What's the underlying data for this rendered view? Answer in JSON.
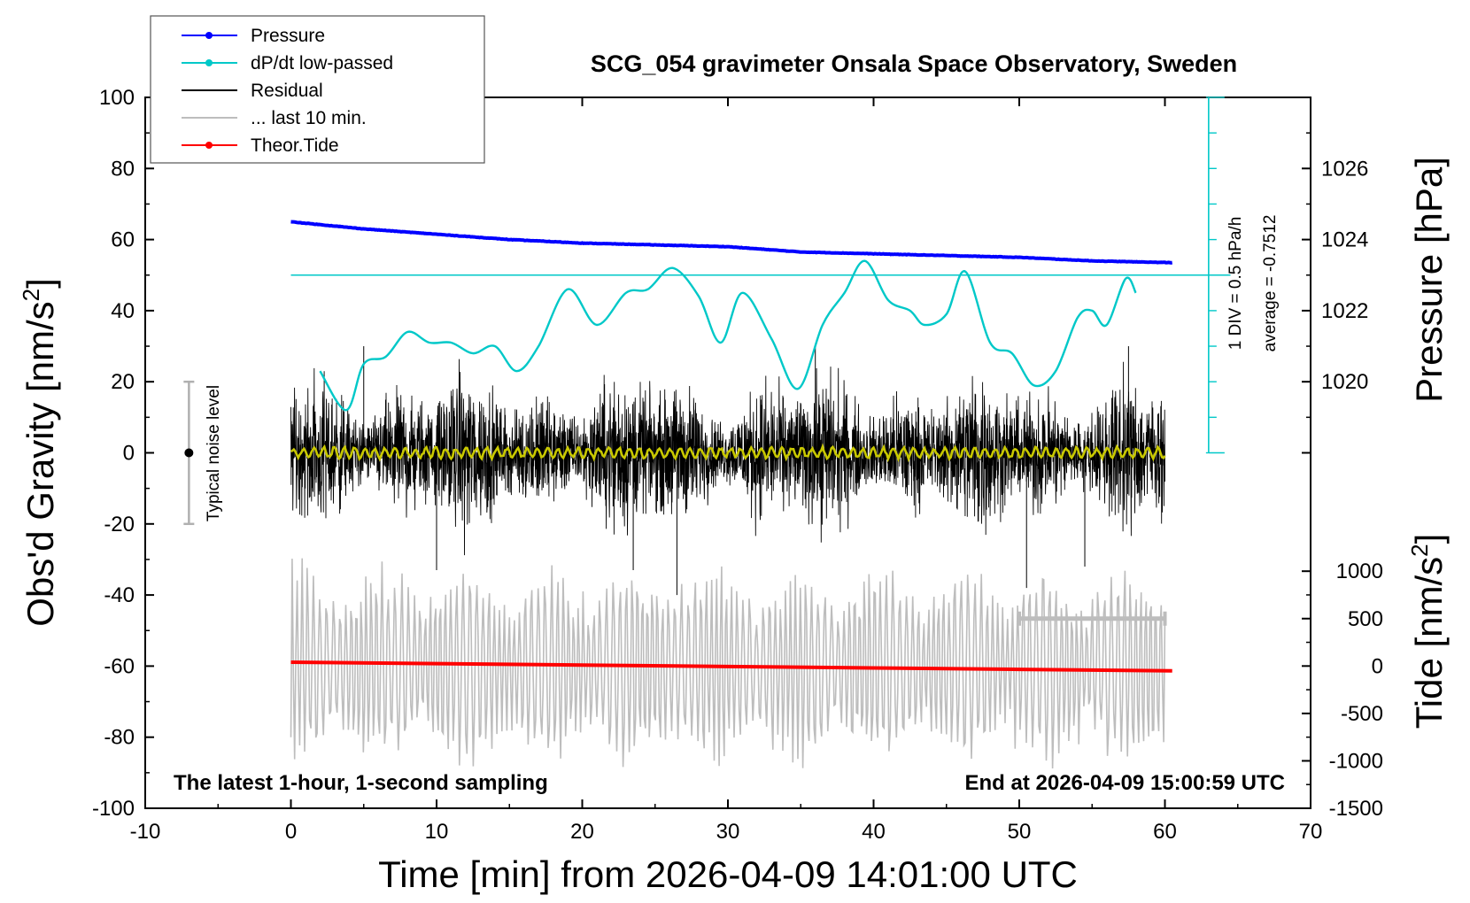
{
  "chart_data": {
    "type": "line",
    "title": "SCG_054 gravimeter Onsala Space Observatory, Sweden",
    "xlabel": "Time [min] from 2026-04-09 14:01:00 UTC",
    "ylabel_left": "Obs'd Gravity [nm/s",
    "ylabel_left_sup": "2",
    "ylabel_left_end": "]",
    "ylabel_right_top": "Pressure [hPa]",
    "ylabel_right_bottom": "Tide [nm/s",
    "ylabel_right_bottom_sup": "2",
    "ylabel_right_bottom_end": "]",
    "xlim": [
      -10,
      70
    ],
    "ylim_left": [
      -100,
      100
    ],
    "pressure_axis_range": [
      1018,
      1028
    ],
    "tide_axis_range": [
      -1500,
      1000
    ],
    "x_ticks": [
      -10,
      0,
      10,
      20,
      30,
      40,
      50,
      60,
      70
    ],
    "x_tick_labels": [
      "-10",
      "0",
      "10",
      "20",
      "30",
      "40",
      "50",
      "60",
      "70"
    ],
    "y_left_ticks": [
      -100,
      -80,
      -60,
      -40,
      -20,
      0,
      20,
      40,
      60,
      80,
      100
    ],
    "y_left_tick_labels": [
      "-100",
      "-80",
      "-60",
      "-40",
      "-20",
      "0",
      "20",
      "40",
      "60",
      "80",
      "100"
    ],
    "pressure_ticks": [
      1020,
      1022,
      1024,
      1026
    ],
    "pressure_tick_labels": [
      "1020",
      "1022",
      "1024",
      "1026"
    ],
    "tide_ticks": [
      -1500,
      -1000,
      -500,
      0,
      500,
      1000
    ],
    "tide_tick_labels": [
      "-1500",
      "-1000",
      "-500",
      "0",
      "500",
      "1000"
    ],
    "legend": {
      "placement": "top-left",
      "entries": [
        {
          "label": "Pressure",
          "color": "#0000ff",
          "marker": true
        },
        {
          "label": "dP/dt low-passed",
          "color": "#00c8c8",
          "marker": true
        },
        {
          "label": "Residual",
          "color": "#000000",
          "marker": false
        },
        {
          "label": "... last 10 min.",
          "color": "#bdbdbd",
          "marker": false
        },
        {
          "label": "Theor.Tide",
          "color": "#ff0000",
          "marker": true
        }
      ]
    },
    "annotations": {
      "bottom_left": "The latest 1-hour, 1-second sampling",
      "bottom_right": "End at 2026-04-09 15:00:59 UTC",
      "noise_label": "Typical noise level",
      "dpdt_scale": "1 DIV = 0.5 hPa/h",
      "dpdt_average": "average = -0.7512"
    },
    "noise_bar": {
      "x": -7,
      "center": 0,
      "half_range": 20
    },
    "last10_bar": {
      "x_start": 50,
      "x_end": 60,
      "tide_value": 500
    },
    "series": [
      {
        "name": "Pressure",
        "axis": "pressure",
        "color": "#0000ff",
        "x": [
          0,
          5,
          10,
          15,
          20,
          25,
          30,
          35,
          40,
          45,
          50,
          55,
          60.5
        ],
        "values": [
          1024.5,
          1024.3,
          1024.15,
          1024.0,
          1023.9,
          1023.85,
          1023.8,
          1023.65,
          1023.6,
          1023.55,
          1023.5,
          1023.4,
          1023.35
        ]
      },
      {
        "name": "dP/dt low-passed",
        "axis": "left",
        "color": "#00c8c8",
        "x": [
          2,
          3.8,
          5,
          6.5,
          8,
          9.5,
          11,
          12.5,
          14,
          15.5,
          17,
          19,
          21,
          23,
          24.5,
          26.2,
          28,
          29.5,
          31,
          33,
          34.8,
          36.5,
          38,
          39.4,
          41,
          42.5,
          43.5,
          45,
          46.3,
          48,
          49.5,
          51,
          52.5,
          54,
          55,
          56,
          57.3,
          58
        ],
        "values": [
          23,
          12,
          25,
          27,
          34,
          31,
          31,
          28,
          30,
          23,
          30,
          46,
          36,
          45,
          46,
          52,
          44,
          31,
          45,
          32,
          18,
          36,
          45,
          54,
          43,
          40,
          36,
          39,
          51,
          31,
          28,
          19,
          23,
          38,
          40,
          36,
          49,
          45
        ]
      },
      {
        "name": "Residual",
        "axis": "left",
        "color": "#000000",
        "x": [
          0,
          60
        ],
        "values": [
          0,
          0
        ],
        "amplitude_typical": 30,
        "extremes": [
          [
            5,
            30
          ],
          [
            10,
            -33
          ],
          [
            23.5,
            -33
          ],
          [
            26.5,
            -40
          ],
          [
            36,
            30
          ],
          [
            50.5,
            -38
          ],
          [
            54.5,
            -32
          ],
          [
            57.5,
            30
          ]
        ]
      },
      {
        "name": "... last 10 min.",
        "axis": "left",
        "color": "#bdbdbd",
        "x": [
          0,
          60
        ],
        "values": [
          -80,
          -46
        ],
        "center": -60,
        "amplitude_typical": 22
      },
      {
        "name": "Theor.Tide",
        "axis": "tide",
        "color": "#ff0000",
        "x": [
          0,
          10,
          20,
          30,
          40,
          50,
          60.5
        ],
        "values": [
          40,
          25,
          10,
          -5,
          -20,
          -35,
          -50
        ]
      }
    ]
  }
}
